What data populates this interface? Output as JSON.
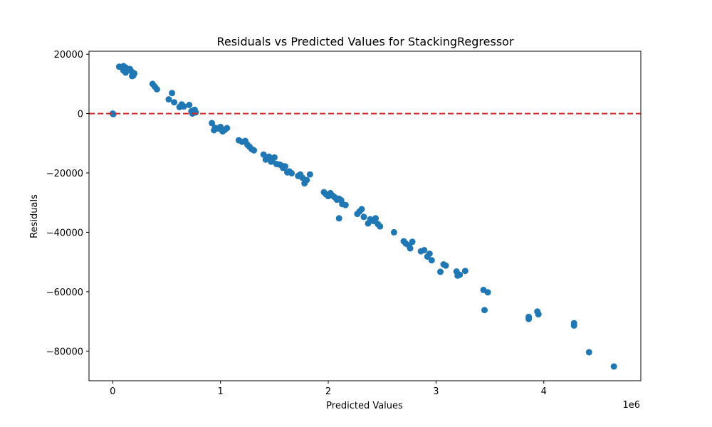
{
  "chart_data": {
    "type": "scatter",
    "title": "Residuals vs Predicted Values for StackingRegressor",
    "xlabel": "Predicted Values",
    "ylabel": "Residuals",
    "x_offset_text": "1e6",
    "xlim": [
      -0.22,
      4.9
    ],
    "ylim": [
      -90000,
      21000
    ],
    "x_ticks": [
      0,
      1,
      2,
      3,
      4
    ],
    "x_tick_labels": [
      "0",
      "1",
      "2",
      "3",
      "4"
    ],
    "y_ticks": [
      20000,
      0,
      -20000,
      -40000,
      -60000,
      -80000
    ],
    "y_tick_labels": [
      "20000",
      "0",
      "−20000",
      "−40000",
      "−60000",
      "−80000"
    ],
    "grid": false,
    "reference_line": {
      "y": 0,
      "color": "#d62728",
      "style": "dashed"
    },
    "marker_color": "#1f77b4",
    "points": [
      [
        0.0,
        0
      ],
      [
        0.005,
        -200
      ],
      [
        0.06,
        15800
      ],
      [
        0.08,
        15600
      ],
      [
        0.1,
        16000
      ],
      [
        0.1,
        14500
      ],
      [
        0.12,
        13800
      ],
      [
        0.12,
        15500
      ],
      [
        0.16,
        15000
      ],
      [
        0.18,
        14000
      ],
      [
        0.18,
        12600
      ],
      [
        0.2,
        13500
      ],
      [
        0.19,
        12800
      ],
      [
        0.37,
        10000
      ],
      [
        0.39,
        9100
      ],
      [
        0.41,
        8200
      ],
      [
        0.52,
        4800
      ],
      [
        0.55,
        6900
      ],
      [
        0.57,
        3800
      ],
      [
        0.62,
        2200
      ],
      [
        0.64,
        3100
      ],
      [
        0.66,
        2400
      ],
      [
        0.71,
        2900
      ],
      [
        0.73,
        800
      ],
      [
        0.74,
        0
      ],
      [
        0.76,
        1300
      ],
      [
        0.77,
        400
      ],
      [
        0.92,
        -3200
      ],
      [
        0.95,
        -4800
      ],
      [
        0.94,
        -5600
      ],
      [
        0.98,
        -5000
      ],
      [
        1.0,
        -5200
      ],
      [
        1.02,
        -6000
      ],
      [
        1.0,
        -4500
      ],
      [
        1.04,
        -5500
      ],
      [
        1.06,
        -4900
      ],
      [
        1.17,
        -9000
      ],
      [
        1.2,
        -9500
      ],
      [
        1.23,
        -9200
      ],
      [
        1.25,
        -10500
      ],
      [
        1.27,
        -11200
      ],
      [
        1.29,
        -12000
      ],
      [
        1.31,
        -12400
      ],
      [
        1.4,
        -13800
      ],
      [
        1.42,
        -15500
      ],
      [
        1.45,
        -14500
      ],
      [
        1.47,
        -16200
      ],
      [
        1.48,
        -16000
      ],
      [
        1.5,
        -14800
      ],
      [
        1.52,
        -17000
      ],
      [
        1.55,
        -17200
      ],
      [
        1.57,
        -17600
      ],
      [
        1.58,
        -18300
      ],
      [
        1.6,
        -17800
      ],
      [
        1.62,
        -19800
      ],
      [
        1.64,
        -19500
      ],
      [
        1.66,
        -20100
      ],
      [
        1.72,
        -21000
      ],
      [
        1.74,
        -20500
      ],
      [
        1.76,
        -21600
      ],
      [
        1.78,
        -23500
      ],
      [
        1.8,
        -22400
      ],
      [
        1.83,
        -20500
      ],
      [
        1.96,
        -26500
      ],
      [
        1.98,
        -27200
      ],
      [
        2.0,
        -27800
      ],
      [
        2.02,
        -26800
      ],
      [
        2.04,
        -27600
      ],
      [
        2.06,
        -28200
      ],
      [
        2.08,
        -29000
      ],
      [
        2.1,
        -28700
      ],
      [
        2.1,
        -35300
      ],
      [
        2.12,
        -29200
      ],
      [
        2.13,
        -30500
      ],
      [
        2.16,
        -30800
      ],
      [
        2.27,
        -33800
      ],
      [
        2.29,
        -33000
      ],
      [
        2.31,
        -32200
      ],
      [
        2.33,
        -34800
      ],
      [
        2.37,
        -37000
      ],
      [
        2.39,
        -35600
      ],
      [
        2.42,
        -36200
      ],
      [
        2.44,
        -35300
      ],
      [
        2.46,
        -37200
      ],
      [
        2.48,
        -38000
      ],
      [
        2.61,
        -40000
      ],
      [
        2.7,
        -43000
      ],
      [
        2.72,
        -43800
      ],
      [
        2.75,
        -44500
      ],
      [
        2.76,
        -45400
      ],
      [
        2.78,
        -43200
      ],
      [
        2.86,
        -46400
      ],
      [
        2.89,
        -46000
      ],
      [
        2.92,
        -48200
      ],
      [
        2.94,
        -47200
      ],
      [
        2.96,
        -49400
      ],
      [
        3.04,
        -53300
      ],
      [
        3.07,
        -50800
      ],
      [
        3.09,
        -51200
      ],
      [
        3.19,
        -53200
      ],
      [
        3.2,
        -54600
      ],
      [
        3.22,
        -54300
      ],
      [
        3.27,
        -53000
      ],
      [
        3.44,
        -59400
      ],
      [
        3.45,
        -66200
      ],
      [
        3.48,
        -60200
      ],
      [
        3.86,
        -69200
      ],
      [
        3.86,
        -68500
      ],
      [
        3.94,
        -66700
      ],
      [
        3.95,
        -67600
      ],
      [
        4.28,
        -70600
      ],
      [
        4.28,
        -71400
      ],
      [
        4.42,
        -80400
      ],
      [
        4.65,
        -85200
      ]
    ]
  }
}
